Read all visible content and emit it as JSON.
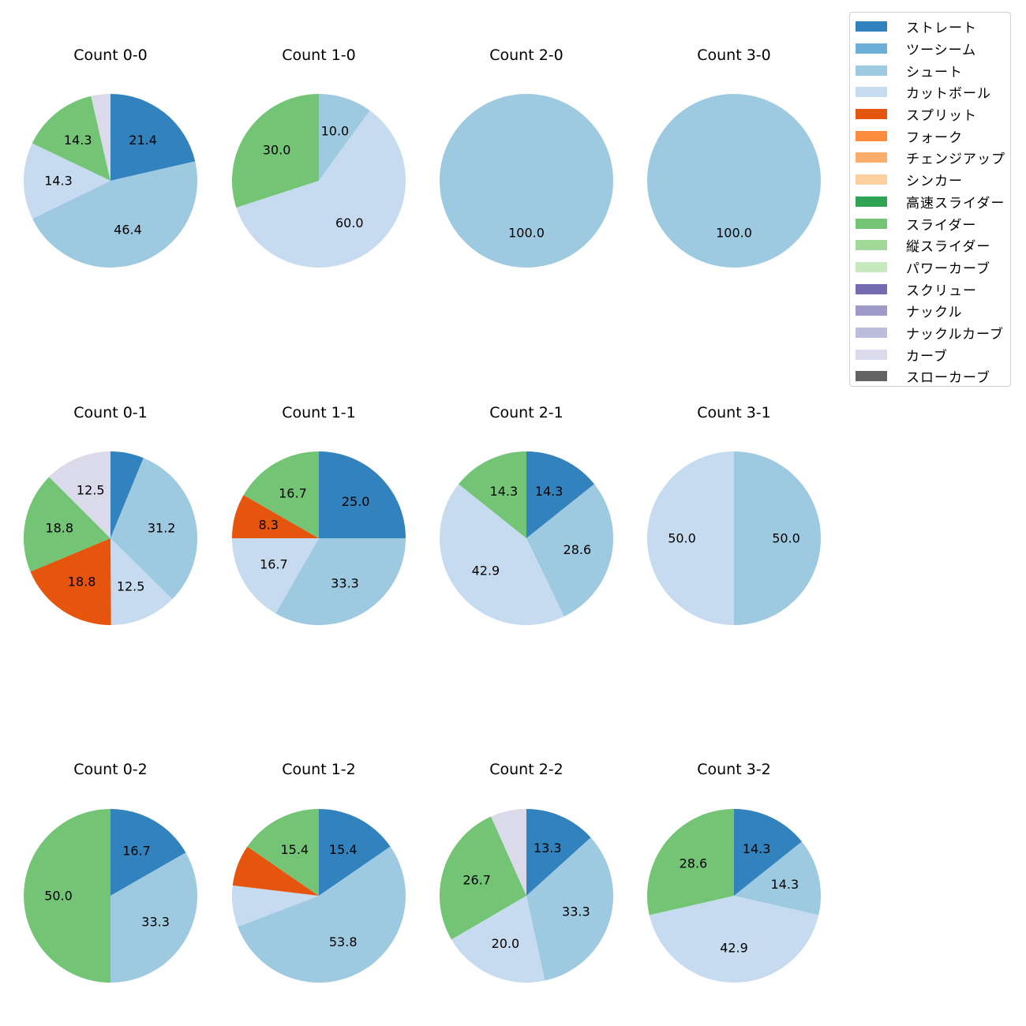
{
  "legend": {
    "items": [
      {
        "label": "ストレート",
        "color": "#3182bd"
      },
      {
        "label": "ツーシーム",
        "color": "#6baed6"
      },
      {
        "label": "シュート",
        "color": "#9ecae1"
      },
      {
        "label": "カットボール",
        "color": "#c6dbef"
      },
      {
        "label": "スプリット",
        "color": "#e6550d"
      },
      {
        "label": "フォーク",
        "color": "#fd8d3c"
      },
      {
        "label": "チェンジアップ",
        "color": "#fdae6b"
      },
      {
        "label": "シンカー",
        "color": "#fdd0a2"
      },
      {
        "label": "高速スライダー",
        "color": "#31a354"
      },
      {
        "label": "スライダー",
        "color": "#74c476"
      },
      {
        "label": "縦スライダー",
        "color": "#a1d99b"
      },
      {
        "label": "パワーカーブ",
        "color": "#c7e9c0"
      },
      {
        "label": "スクリュー",
        "color": "#756bb1"
      },
      {
        "label": "ナックル",
        "color": "#9e9ac8"
      },
      {
        "label": "ナックルカーブ",
        "color": "#bcbddc"
      },
      {
        "label": "カーブ",
        "color": "#dadaeb"
      },
      {
        "label": "スローカーブ",
        "color": "#636363"
      }
    ]
  },
  "chart_data": [
    {
      "type": "pie",
      "title": "Count 0-0",
      "slices": [
        {
          "category": "ストレート",
          "value": 21.4,
          "label": "21.4"
        },
        {
          "category": "シュート",
          "value": 46.4,
          "label": "46.4"
        },
        {
          "category": "カットボール",
          "value": 14.3,
          "label": "14.3"
        },
        {
          "category": "スライダー",
          "value": 14.3,
          "label": "14.3"
        },
        {
          "category": "カーブ",
          "value": 3.6,
          "label": ""
        }
      ]
    },
    {
      "type": "pie",
      "title": "Count 1-0",
      "slices": [
        {
          "category": "シュート",
          "value": 10.0,
          "label": "10.0"
        },
        {
          "category": "カットボール",
          "value": 60.0,
          "label": "60.0"
        },
        {
          "category": "スライダー",
          "value": 30.0,
          "label": "30.0"
        }
      ]
    },
    {
      "type": "pie",
      "title": "Count 2-0",
      "slices": [
        {
          "category": "シュート",
          "value": 100.0,
          "label": "100.0"
        }
      ]
    },
    {
      "type": "pie",
      "title": "Count 3-0",
      "slices": [
        {
          "category": "シュート",
          "value": 100.0,
          "label": "100.0"
        }
      ]
    },
    {
      "type": "pie",
      "title": "Count 0-1",
      "slices": [
        {
          "category": "ストレート",
          "value": 6.2,
          "label": ""
        },
        {
          "category": "シュート",
          "value": 31.2,
          "label": "31.2"
        },
        {
          "category": "カットボール",
          "value": 12.5,
          "label": "12.5"
        },
        {
          "category": "スプリット",
          "value": 18.8,
          "label": "18.8"
        },
        {
          "category": "スライダー",
          "value": 18.8,
          "label": "18.8"
        },
        {
          "category": "カーブ",
          "value": 12.5,
          "label": "12.5"
        }
      ]
    },
    {
      "type": "pie",
      "title": "Count 1-1",
      "slices": [
        {
          "category": "ストレート",
          "value": 25.0,
          "label": "25.0"
        },
        {
          "category": "シュート",
          "value": 33.3,
          "label": "33.3"
        },
        {
          "category": "カットボール",
          "value": 16.7,
          "label": "16.7"
        },
        {
          "category": "スプリット",
          "value": 8.3,
          "label": "8.3"
        },
        {
          "category": "スライダー",
          "value": 16.7,
          "label": "16.7"
        }
      ]
    },
    {
      "type": "pie",
      "title": "Count 2-1",
      "slices": [
        {
          "category": "ストレート",
          "value": 14.3,
          "label": "14.3"
        },
        {
          "category": "シュート",
          "value": 28.6,
          "label": "28.6"
        },
        {
          "category": "カットボール",
          "value": 42.9,
          "label": "42.9"
        },
        {
          "category": "スライダー",
          "value": 14.3,
          "label": "14.3"
        }
      ]
    },
    {
      "type": "pie",
      "title": "Count 3-1",
      "slices": [
        {
          "category": "シュート",
          "value": 50.0,
          "label": "50.0"
        },
        {
          "category": "カットボール",
          "value": 50.0,
          "label": "50.0"
        }
      ]
    },
    {
      "type": "pie",
      "title": "Count 0-2",
      "slices": [
        {
          "category": "ストレート",
          "value": 16.7,
          "label": "16.7"
        },
        {
          "category": "シュート",
          "value": 33.3,
          "label": "33.3"
        },
        {
          "category": "スライダー",
          "value": 50.0,
          "label": "50.0"
        }
      ]
    },
    {
      "type": "pie",
      "title": "Count 1-2",
      "slices": [
        {
          "category": "ストレート",
          "value": 15.4,
          "label": "15.4"
        },
        {
          "category": "シュート",
          "value": 53.8,
          "label": "53.8"
        },
        {
          "category": "カットボール",
          "value": 7.7,
          "label": ""
        },
        {
          "category": "スプリット",
          "value": 7.7,
          "label": ""
        },
        {
          "category": "スライダー",
          "value": 15.4,
          "label": "15.4"
        }
      ]
    },
    {
      "type": "pie",
      "title": "Count 2-2",
      "slices": [
        {
          "category": "ストレート",
          "value": 13.3,
          "label": "13.3"
        },
        {
          "category": "シュート",
          "value": 33.3,
          "label": "33.3"
        },
        {
          "category": "カットボール",
          "value": 20.0,
          "label": "20.0"
        },
        {
          "category": "スライダー",
          "value": 26.7,
          "label": "26.7"
        },
        {
          "category": "カーブ",
          "value": 6.7,
          "label": ""
        }
      ]
    },
    {
      "type": "pie",
      "title": "Count 3-2",
      "slices": [
        {
          "category": "ストレート",
          "value": 14.3,
          "label": "14.3"
        },
        {
          "category": "シュート",
          "value": 14.3,
          "label": "14.3"
        },
        {
          "category": "カットボール",
          "value": 42.9,
          "label": "42.9"
        },
        {
          "category": "スライダー",
          "value": 28.6,
          "label": "28.6"
        }
      ]
    }
  ]
}
